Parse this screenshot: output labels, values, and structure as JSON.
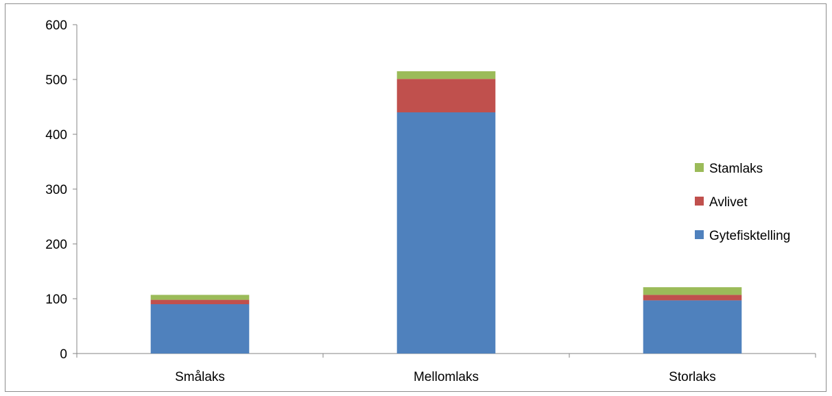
{
  "chart_data": {
    "type": "bar",
    "stacked": true,
    "categories": [
      "Smålaks",
      "Mellomlaks",
      "Storlaks"
    ],
    "series": [
      {
        "name": "Gytefisktelling",
        "values": [
          90,
          440,
          97
        ],
        "color": "#4F81BD"
      },
      {
        "name": "Avlivet",
        "values": [
          8,
          61,
          10
        ],
        "color": "#C0504D"
      },
      {
        "name": "Stamlaks",
        "values": [
          9,
          14,
          14
        ],
        "color": "#9BBB59"
      }
    ],
    "y_ticks": [
      "0",
      "100",
      "200",
      "300",
      "400",
      "500",
      "600"
    ],
    "ylim": [
      0,
      600
    ],
    "legend_order": [
      "Stamlaks",
      "Avlivet",
      "Gytefisktelling"
    ],
    "legend_position": "right",
    "grid": false,
    "title": "",
    "xlabel": "",
    "ylabel": ""
  }
}
